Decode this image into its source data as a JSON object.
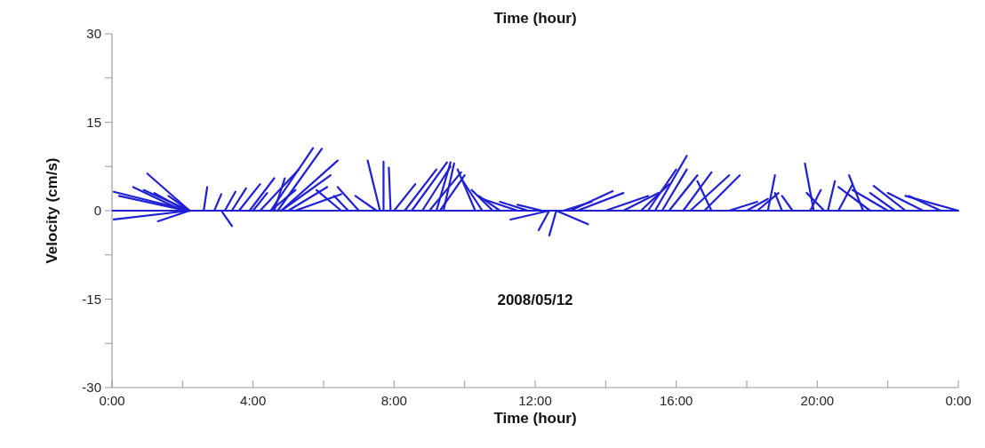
{
  "chart_data": {
    "type": "line",
    "xlabel": "Time (hour)",
    "ylabel": "Velocity (cm/s)",
    "annotations": [
      "Time (hour)",
      "2008/05/12"
    ],
    "xlim": [
      0,
      24
    ],
    "xticks": [
      {
        "value": 0,
        "label": "0:00"
      },
      {
        "value": 2,
        "label": null
      },
      {
        "value": 4,
        "label": "4:00"
      },
      {
        "value": 6,
        "label": null
      },
      {
        "value": 8,
        "label": "8:00"
      },
      {
        "value": 10,
        "label": null
      },
      {
        "value": 12,
        "label": "12:00"
      },
      {
        "value": 14,
        "label": null
      },
      {
        "value": 16,
        "label": "16:00"
      },
      {
        "value": 18,
        "label": null
      },
      {
        "value": 20,
        "label": "20:00"
      },
      {
        "value": 22,
        "label": null
      },
      {
        "value": 24,
        "label": "0:00"
      }
    ],
    "ylim": [
      -30,
      30
    ],
    "yticks": [
      -30,
      {
        "value": -22.5,
        "label": null
      },
      -15,
      {
        "value": -7.5,
        "label": null
      },
      0,
      {
        "value": 7.5,
        "label": null
      },
      15,
      {
        "value": 22.5,
        "label": null
      },
      30
    ],
    "marker": "none",
    "line_style": "solid",
    "ref_lines": [
      {
        "axis": "y",
        "value": 0,
        "color": "#1f1fd6"
      }
    ],
    "series": [
      {
        "color": "#1f1fd6",
        "x": [
          2.2,
          0.05
        ],
        "values": [
          0,
          3.2
        ]
      },
      {
        "color": "#1f1fd6",
        "x": [
          2.1,
          0.2
        ],
        "values": [
          0,
          2.5
        ]
      },
      {
        "color": "#1f1fd6",
        "x": [
          2.0,
          0.6
        ],
        "values": [
          0,
          4.0
        ]
      },
      {
        "color": "#1f1fd6",
        "x": [
          2.2,
          0.9
        ],
        "values": [
          0,
          3.5
        ]
      },
      {
        "color": "#1f1fd6",
        "x": [
          2.1,
          1.2
        ],
        "values": [
          0,
          3.0
        ]
      },
      {
        "color": "#1f1fd6",
        "x": [
          2.2,
          1.0
        ],
        "values": [
          0,
          6.3
        ]
      },
      {
        "color": "#1f1fd6",
        "x": [
          2.2,
          1.6
        ],
        "values": [
          0,
          2.5
        ]
      },
      {
        "color": "#1f1fd6",
        "x": [
          2.2,
          0.05
        ],
        "values": [
          0,
          -1.5
        ]
      },
      {
        "color": "#1f1fd6",
        "x": [
          2.2,
          1.3
        ],
        "values": [
          0,
          -1.8
        ]
      },
      {
        "color": "#1f1fd6",
        "x": [
          2.6,
          2.7
        ],
        "values": [
          0,
          4.0
        ]
      },
      {
        "color": "#1f1fd6",
        "x": [
          3.1,
          3.4
        ],
        "values": [
          0,
          -2.6
        ]
      },
      {
        "color": "#1f1fd6",
        "x": [
          2.9,
          3.1
        ],
        "values": [
          0,
          2.8
        ]
      },
      {
        "color": "#1f1fd6",
        "x": [
          3.2,
          3.5
        ],
        "values": [
          0,
          3.2
        ]
      },
      {
        "color": "#1f1fd6",
        "x": [
          3.4,
          3.8
        ],
        "values": [
          0,
          3.8
        ]
      },
      {
        "color": "#1f1fd6",
        "x": [
          3.6,
          4.2
        ],
        "values": [
          0,
          4.5
        ]
      },
      {
        "color": "#1f1fd6",
        "x": [
          3.9,
          4.6
        ],
        "values": [
          0,
          5.5
        ]
      },
      {
        "color": "#1f1fd6",
        "x": [
          4.0,
          4.4
        ],
        "values": [
          0,
          3.0
        ]
      },
      {
        "color": "#1f1fd6",
        "x": [
          4.2,
          5.3
        ],
        "values": [
          0,
          7.0
        ]
      },
      {
        "color": "#1f1fd6",
        "x": [
          4.5,
          5.7
        ],
        "values": [
          0,
          10.6
        ]
      },
      {
        "color": "#1f1fd6",
        "x": [
          4.7,
          5.95
        ],
        "values": [
          0,
          10.5
        ]
      },
      {
        "color": "#1f1fd6",
        "x": [
          4.8,
          6.4
        ],
        "values": [
          0,
          8.5
        ]
      },
      {
        "color": "#1f1fd6",
        "x": [
          4.8,
          6.2
        ],
        "values": [
          0,
          6.0
        ]
      },
      {
        "color": "#1f1fd6",
        "x": [
          4.6,
          4.9
        ],
        "values": [
          0,
          5.5
        ]
      },
      {
        "color": "#1f1fd6",
        "x": [
          4.5,
          5.2
        ],
        "values": [
          0,
          3.5
        ]
      },
      {
        "color": "#1f1fd6",
        "x": [
          5.0,
          6.1
        ],
        "values": [
          0,
          4.0
        ]
      },
      {
        "color": "#1f1fd6",
        "x": [
          5.2,
          6.5
        ],
        "values": [
          0,
          2.8
        ]
      },
      {
        "color": "#1f1fd6",
        "x": [
          6.5,
          5.8
        ],
        "values": [
          0,
          3.5
        ]
      },
      {
        "color": "#1f1fd6",
        "x": [
          6.7,
          6.3
        ],
        "values": [
          0,
          2.5
        ]
      },
      {
        "color": "#1f1fd6",
        "x": [
          7.0,
          6.4
        ],
        "values": [
          0,
          4.0
        ]
      },
      {
        "color": "#1f1fd6",
        "x": [
          7.5,
          6.9
        ],
        "values": [
          0,
          2.5
        ]
      },
      {
        "color": "#1f1fd6",
        "x": [
          7.6,
          7.25
        ],
        "values": [
          0,
          8.5
        ]
      },
      {
        "color": "#1f1fd6",
        "x": [
          7.7,
          7.7
        ],
        "values": [
          0,
          8.3
        ]
      },
      {
        "color": "#1f1fd6",
        "x": [
          7.9,
          7.85
        ],
        "values": [
          0,
          7.3
        ]
      },
      {
        "color": "#1f1fd6",
        "x": [
          8.0,
          8.6
        ],
        "values": [
          0,
          4.5
        ]
      },
      {
        "color": "#1f1fd6",
        "x": [
          8.3,
          9.2
        ],
        "values": [
          0,
          7.0
        ]
      },
      {
        "color": "#1f1fd6",
        "x": [
          8.5,
          9.5
        ],
        "values": [
          0,
          8.2
        ]
      },
      {
        "color": "#1f1fd6",
        "x": [
          8.8,
          9.6
        ],
        "values": [
          0,
          7.5
        ]
      },
      {
        "color": "#1f1fd6",
        "x": [
          9.0,
          9.9
        ],
        "values": [
          0,
          6.5
        ]
      },
      {
        "color": "#1f1fd6",
        "x": [
          9.2,
          9.6
        ],
        "values": [
          0,
          8.2
        ]
      },
      {
        "color": "#1f1fd6",
        "x": [
          9.4,
          9.7
        ],
        "values": [
          0,
          8.0
        ]
      },
      {
        "color": "#1f1fd6",
        "x": [
          9.3,
          10.0
        ],
        "values": [
          0,
          6.0
        ]
      },
      {
        "color": "#1f1fd6",
        "x": [
          10.3,
          9.8
        ],
        "values": [
          0,
          7.0
        ]
      },
      {
        "color": "#1f1fd6",
        "x": [
          10.5,
          9.9
        ],
        "values": [
          0,
          5.5
        ]
      },
      {
        "color": "#1f1fd6",
        "x": [
          10.8,
          10.2
        ],
        "values": [
          0,
          3.5
        ]
      },
      {
        "color": "#1f1fd6",
        "x": [
          11.0,
          10.4
        ],
        "values": [
          0,
          2.5
        ]
      },
      {
        "color": "#1f1fd6",
        "x": [
          11.5,
          10.5
        ],
        "values": [
          0,
          2.0
        ]
      },
      {
        "color": "#1f1fd6",
        "x": [
          11.8,
          11.0
        ],
        "values": [
          0,
          1.5
        ]
      },
      {
        "color": "#1f1fd6",
        "x": [
          12.2,
          11.5
        ],
        "values": [
          0,
          1.0
        ]
      },
      {
        "color": "#1f1fd6",
        "x": [
          12.4,
          11.3
        ],
        "values": [
          0,
          -1.5
        ]
      },
      {
        "color": "#1f1fd6",
        "x": [
          12.4,
          12.1
        ],
        "values": [
          0,
          -3.3
        ]
      },
      {
        "color": "#1f1fd6",
        "x": [
          12.6,
          12.4
        ],
        "values": [
          0,
          -4.2
        ]
      },
      {
        "color": "#1f1fd6",
        "x": [
          12.6,
          13.5
        ],
        "values": [
          0,
          -2.3
        ]
      },
      {
        "color": "#1f1fd6",
        "x": [
          12.8,
          13.6
        ],
        "values": [
          0,
          1.5
        ]
      },
      {
        "color": "#1f1fd6",
        "x": [
          13.0,
          14.2
        ],
        "values": [
          0,
          3.3
        ]
      },
      {
        "color": "#1f1fd6",
        "x": [
          13.2,
          14.5
        ],
        "values": [
          0,
          3.0
        ]
      },
      {
        "color": "#1f1fd6",
        "x": [
          14.0,
          15.2
        ],
        "values": [
          0,
          2.5
        ]
      },
      {
        "color": "#1f1fd6",
        "x": [
          14.5,
          15.5
        ],
        "values": [
          0,
          3.0
        ]
      },
      {
        "color": "#1f1fd6",
        "x": [
          15.0,
          15.8
        ],
        "values": [
          0,
          4.5
        ]
      },
      {
        "color": "#1f1fd6",
        "x": [
          15.2,
          16.0
        ],
        "values": [
          0,
          7.0
        ]
      },
      {
        "color": "#1f1fd6",
        "x": [
          15.4,
          16.3
        ],
        "values": [
          0,
          9.3
        ]
      },
      {
        "color": "#1f1fd6",
        "x": [
          15.6,
          16.3
        ],
        "values": [
          0,
          7.0
        ]
      },
      {
        "color": "#1f1fd6",
        "x": [
          15.8,
          16.6
        ],
        "values": [
          0,
          6.0
        ]
      },
      {
        "color": "#1f1fd6",
        "x": [
          16.2,
          17.0
        ],
        "values": [
          0,
          6.5
        ]
      },
      {
        "color": "#1f1fd6",
        "x": [
          16.4,
          17.5
        ],
        "values": [
          0,
          6.0
        ]
      },
      {
        "color": "#1f1fd6",
        "x": [
          16.8,
          17.8
        ],
        "values": [
          0,
          6.0
        ]
      },
      {
        "color": "#1f1fd6",
        "x": [
          17.0,
          16.6
        ],
        "values": [
          0,
          5.0
        ]
      },
      {
        "color": "#1f1fd6",
        "x": [
          17.5,
          18.3
        ],
        "values": [
          0,
          1.5
        ]
      },
      {
        "color": "#1f1fd6",
        "x": [
          18.0,
          18.6
        ],
        "values": [
          0,
          2.0
        ]
      },
      {
        "color": "#1f1fd6",
        "x": [
          18.3,
          18.9
        ],
        "values": [
          0,
          3.0
        ]
      },
      {
        "color": "#1f1fd6",
        "x": [
          18.6,
          18.8
        ],
        "values": [
          0,
          6.0
        ]
      },
      {
        "color": "#1f1fd6",
        "x": [
          19.0,
          18.8
        ],
        "values": [
          0,
          3.0
        ]
      },
      {
        "color": "#1f1fd6",
        "x": [
          19.3,
          19.0
        ],
        "values": [
          0,
          2.5
        ]
      },
      {
        "color": "#1f1fd6",
        "x": [
          19.9,
          19.65
        ],
        "values": [
          0,
          8.0
        ]
      },
      {
        "color": "#1f1fd6",
        "x": [
          19.8,
          20.1
        ],
        "values": [
          0,
          3.5
        ]
      },
      {
        "color": "#1f1fd6",
        "x": [
          20.2,
          19.7
        ],
        "values": [
          0,
          3.0
        ]
      },
      {
        "color": "#1f1fd6",
        "x": [
          20.3,
          20.5
        ],
        "values": [
          0,
          5.0
        ]
      },
      {
        "color": "#1f1fd6",
        "x": [
          20.6,
          21.0
        ],
        "values": [
          0,
          4.5
        ]
      },
      {
        "color": "#1f1fd6",
        "x": [
          21.3,
          20.9
        ],
        "values": [
          0,
          6.0
        ]
      },
      {
        "color": "#1f1fd6",
        "x": [
          21.5,
          20.6
        ],
        "values": [
          0,
          4.0
        ]
      },
      {
        "color": "#1f1fd6",
        "x": [
          22.0,
          21.0
        ],
        "values": [
          0,
          3.5
        ]
      },
      {
        "color": "#1f1fd6",
        "x": [
          22.2,
          21.5
        ],
        "values": [
          0,
          3.0
        ]
      },
      {
        "color": "#1f1fd6",
        "x": [
          22.5,
          21.6
        ],
        "values": [
          0,
          4.2
        ]
      },
      {
        "color": "#1f1fd6",
        "x": [
          23.0,
          22.0
        ],
        "values": [
          0,
          3.0
        ]
      },
      {
        "color": "#1f1fd6",
        "x": [
          23.5,
          22.6
        ],
        "values": [
          0,
          2.5
        ]
      },
      {
        "color": "#1f1fd6",
        "x": [
          24.0,
          22.5
        ],
        "values": [
          0,
          2.5
        ]
      }
    ]
  }
}
